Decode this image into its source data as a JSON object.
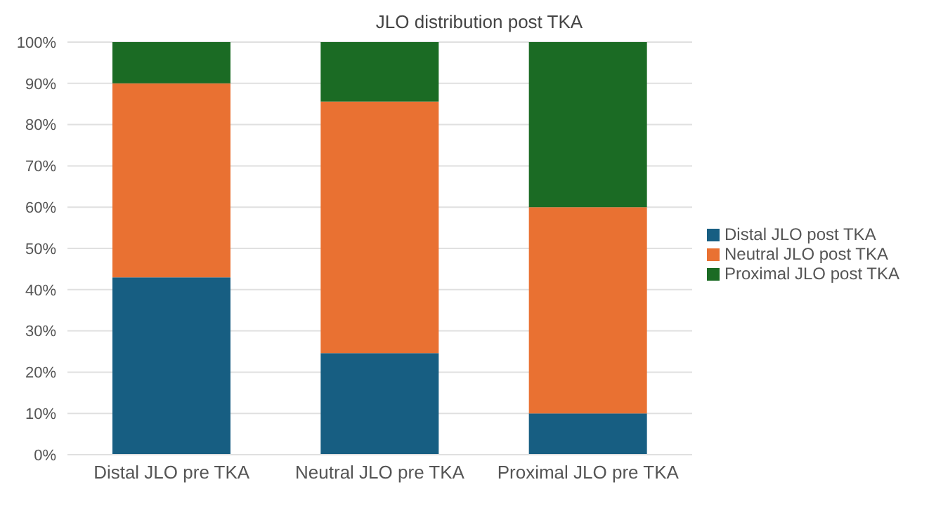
{
  "chart_data": {
    "type": "bar",
    "title": "JLO distribution post TKA",
    "stacked": true,
    "categories": [
      "Distal JLO pre TKA",
      "Neutral JLO pre TKA",
      "Proximal JLO pre TKA"
    ],
    "series": [
      {
        "name": "Distal JLO post TKA",
        "color": "#175e82",
        "values": [
          43,
          24.6,
          10
        ]
      },
      {
        "name": "Neutral JLO post TKA",
        "color": "#e97132",
        "values": [
          47,
          61,
          50
        ]
      },
      {
        "name": "Proximal JLO post TKA",
        "color": "#1b6b24",
        "values": [
          10,
          14.4,
          40
        ]
      }
    ],
    "ylim": [
      0,
      100
    ],
    "yticks": [
      {
        "value": 0,
        "label": "0%"
      },
      {
        "value": 10,
        "label": "10%"
      },
      {
        "value": 20,
        "label": "20%"
      },
      {
        "value": 30,
        "label": "30%"
      },
      {
        "value": 40,
        "label": "40%"
      },
      {
        "value": 50,
        "label": "50%"
      },
      {
        "value": 60,
        "label": "60%"
      },
      {
        "value": 70,
        "label": "70%"
      },
      {
        "value": 80,
        "label": "80%"
      },
      {
        "value": 90,
        "label": "90%"
      },
      {
        "value": 100,
        "label": "100%"
      }
    ],
    "grid": "y",
    "legend": "right"
  }
}
